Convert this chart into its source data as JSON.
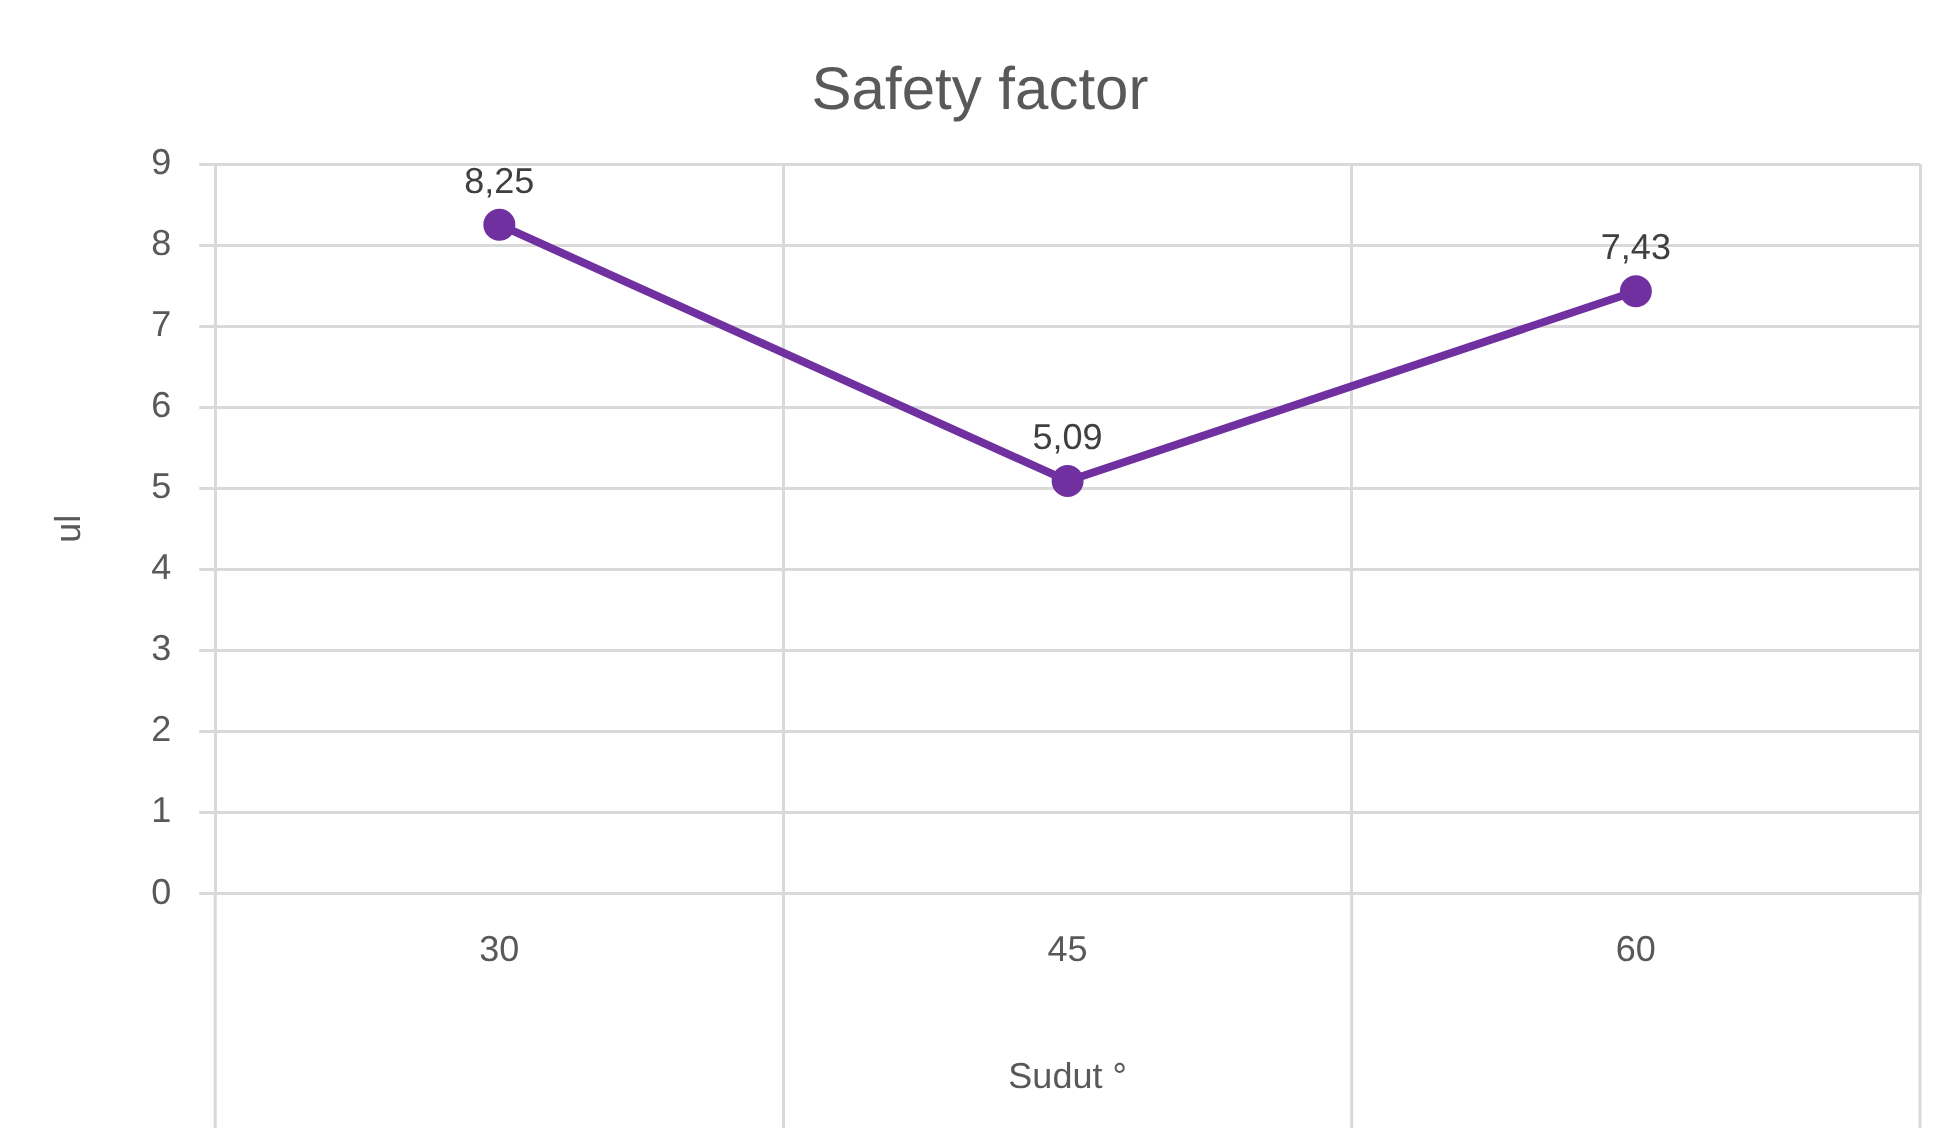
{
  "chart_data": {
    "type": "line",
    "title": "Safety factor",
    "xlabel": "Sudut °",
    "ylabel": "ul",
    "categories": [
      "30",
      "45",
      "60"
    ],
    "series": [
      {
        "color": "#7030a0",
        "values": [
          8.25,
          5.09,
          7.43
        ],
        "value_labels": [
          "8,25",
          "5,09",
          "7,43"
        ]
      }
    ],
    "ylim": [
      0,
      9
    ],
    "yticks": [
      0,
      1,
      2,
      3,
      4,
      5,
      6,
      7,
      8,
      9
    ],
    "grid": true,
    "legend": false,
    "marker": "circle",
    "line_style": "solid"
  }
}
